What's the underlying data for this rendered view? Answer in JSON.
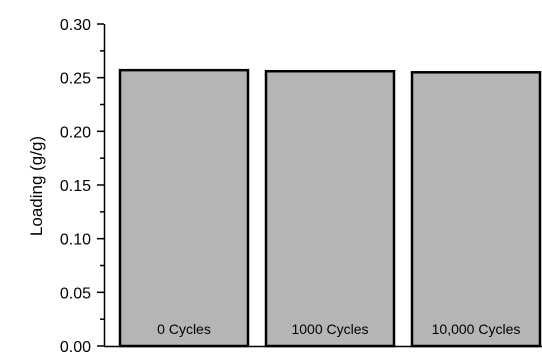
{
  "chart_data": {
    "type": "bar",
    "categories": [
      "0 Cycles",
      "1000 Cycles",
      "10,000 Cycles"
    ],
    "values": [
      0.257,
      0.256,
      0.255
    ],
    "title": "",
    "xlabel": "",
    "ylabel": "Loading (g/g)",
    "ylim": [
      0.0,
      0.3
    ],
    "yticks": [
      "0.00",
      "0.05",
      "0.10",
      "0.15",
      "0.20",
      "0.25",
      "0.30"
    ],
    "bar_color": "#b5b5b5",
    "bar_edge_color": "#000000",
    "grid": false,
    "legend": "none"
  }
}
